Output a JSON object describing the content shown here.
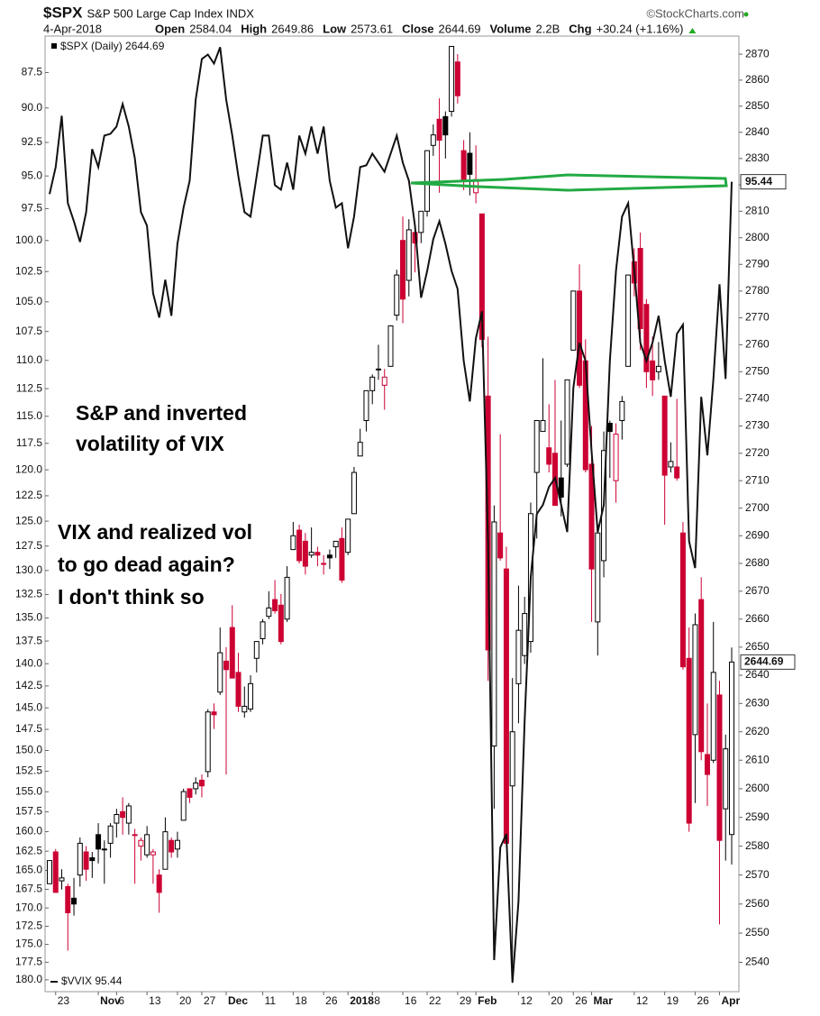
{
  "chart_data": {
    "type": "candlestick",
    "title": "$SPX",
    "subtitle": "S&P 500 Large Cap Index INDX",
    "source": "©StockCharts.com",
    "date": "4-Apr-2018",
    "stats": [
      {
        "label": "Open",
        "value": "2584.04"
      },
      {
        "label": "High",
        "value": "2649.86"
      },
      {
        "label": "Low",
        "value": "2573.61"
      },
      {
        "label": "Close",
        "value": "2644.69"
      },
      {
        "label": "Volume",
        "value": "2.2B"
      },
      {
        "label": "Chg",
        "value": "+30.24 (+1.16%)"
      }
    ],
    "annotations": [
      "S&P and inverted",
      "volatility of VIX",
      "VIX and realized vol",
      "to go dead again?",
      "I don't think so"
    ],
    "categories": [
      null,
      "23",
      null,
      null,
      null,
      null,
      null,
      null,
      "Nov",
      null,
      null,
      "6",
      null,
      null,
      null,
      null,
      "13",
      null,
      null,
      null,
      null,
      "20",
      null,
      null,
      null,
      "27",
      null,
      null,
      null,
      "Dec",
      null,
      null,
      null,
      null,
      null,
      "11",
      null,
      null,
      null,
      null,
      "18",
      null,
      null,
      null,
      null,
      "26",
      null,
      null,
      null,
      "2018",
      null,
      null,
      null,
      "8",
      null,
      null,
      null,
      null,
      "16",
      null,
      null,
      null,
      "22",
      null,
      null,
      null,
      null,
      "29",
      null,
      null,
      "Feb",
      null,
      null,
      null,
      null,
      null,
      null,
      "12",
      null,
      null,
      null,
      null,
      "20",
      null,
      null,
      null,
      "26",
      null,
      null,
      "Mar",
      null,
      null,
      null,
      null,
      null,
      null,
      "12",
      null,
      null,
      null,
      null,
      "19",
      null,
      null,
      null,
      null,
      "26",
      null,
      null,
      null,
      "Apr",
      null,
      null
    ],
    "ylim": [
      181.7,
      85
    ],
    "ylog": true,
    "yticks": [
      87.5,
      {
        "value": 90,
        "label": "90.0"
      },
      92.5,
      {
        "value": 95,
        "label": "95.0"
      },
      97.5,
      {
        "value": 100,
        "label": "100.0"
      },
      102.5,
      {
        "value": 105,
        "label": "105.0"
      },
      107.5,
      {
        "value": 110,
        "label": "110.0"
      },
      112.5,
      {
        "value": 115,
        "label": "115.0"
      },
      117.5,
      {
        "value": 120,
        "label": "120.0"
      },
      122.5,
      {
        "value": 125,
        "label": "125.0"
      },
      127.5,
      {
        "value": 130,
        "label": "130.0"
      },
      132.5,
      {
        "value": 135,
        "label": "135.0"
      },
      137.5,
      {
        "value": 140,
        "label": "140.0"
      },
      142.5,
      {
        "value": 145,
        "label": "145.0"
      },
      147.5,
      {
        "value": 150,
        "label": "150.0"
      },
      152.5,
      {
        "value": 155,
        "label": "155.0"
      },
      157.5,
      {
        "value": 160,
        "label": "160.0"
      },
      162.5,
      {
        "value": 165,
        "label": "165.0"
      },
      167.5,
      {
        "value": 170,
        "label": "170.0"
      },
      172.5,
      {
        "value": 175,
        "label": "175.0"
      },
      177.5,
      {
        "value": 180,
        "label": "180.0"
      }
    ],
    "y2lim": [
      2530,
      2877
    ],
    "y2log": true,
    "y2ticks": [
      2540,
      2550,
      2560,
      2570,
      2580,
      2590,
      2600,
      2610,
      2620,
      2630,
      2640,
      2650,
      2660,
      2670,
      2680,
      2690,
      2700,
      2710,
      2720,
      2730,
      2740,
      2750,
      2760,
      2770,
      2780,
      2790,
      2800,
      2810,
      2820,
      2830,
      2840,
      2850,
      2860,
      2870
    ],
    "grid": false,
    "up_color": "#000000",
    "down_color": "#cc0033",
    "series": [
      {
        "name": "$SPX (Daily) 2644.69",
        "type": "candlestick",
        "axis": "y2",
        "open": [
          2567,
          2578,
          2568,
          2566,
          2562,
          2570,
          2578,
          2576,
          2584,
          2579,
          2581,
          2588,
          2592,
          2588,
          2584,
          2580,
          2577,
          2577,
          2570,
          2572,
          2582,
          2579,
          2589,
          2600,
          2600,
          2603,
          2606,
          2627,
          2634,
          2645,
          2657,
          2641,
          2627,
          2628,
          2646,
          2653,
          2661,
          2667,
          2665,
          2660,
          2685,
          2692,
          2688,
          2683,
          2684,
          2680,
          2683,
          2686,
          2689,
          2684,
          2698,
          2719,
          2732,
          2743,
          2751,
          2745,
          2752,
          2771,
          2799,
          2784,
          2802,
          2802,
          2810,
          2835,
          2845,
          2846,
          2848,
          2867,
          2833,
          2832,
          2817,
          2809,
          2741,
          2615,
          2691,
          2678,
          2601,
          2637,
          2647,
          2652,
          2713,
          2728,
          2722,
          2720,
          2711,
          2716,
          2758,
          2780,
          2754,
          2716,
          2659,
          2681,
          2731,
          2710,
          2732,
          2752,
          2791,
          2796,
          2775,
          2754,
          2750,
          2741,
          2715,
          2715,
          2691,
          2646,
          2619,
          2667,
          2612,
          2610,
          2633,
          2593,
          2584.04
        ],
        "high": [
          2575,
          2579,
          2572,
          2567,
          2569,
          2583,
          2580,
          2578,
          2588,
          2582,
          2588,
          2593,
          2597,
          2595,
          2586,
          2583,
          2587,
          2579,
          2572,
          2590,
          2583,
          2585,
          2600,
          2600,
          2604,
          2605,
          2628,
          2630,
          2657,
          2650,
          2665,
          2648,
          2636,
          2640,
          2652,
          2660,
          2670,
          2674,
          2669,
          2679,
          2695,
          2694,
          2691,
          2693,
          2686,
          2683,
          2685,
          2688,
          2693,
          2696,
          2715,
          2729,
          2743,
          2749,
          2760,
          2751,
          2767,
          2788,
          2808,
          2807,
          2805,
          2810,
          2833,
          2843,
          2853,
          2848,
          2873,
          2870,
          2837,
          2840,
          2835,
          2809,
          2763,
          2701,
          2727,
          2686,
          2639,
          2672,
          2668,
          2702,
          2732,
          2755,
          2738,
          2747,
          2732,
          2747,
          2780,
          2790,
          2762,
          2730,
          2694,
          2728,
          2732,
          2731,
          2741,
          2786,
          2796,
          2802,
          2777,
          2763,
          2761,
          2741,
          2724,
          2740,
          2695,
          2657,
          2662,
          2675,
          2630,
          2659,
          2638,
          2619,
          2649.86
        ],
        "low": [
          2567,
          2564,
          2565,
          2544,
          2556,
          2566,
          2568,
          2569,
          2574,
          2567,
          2576,
          2583,
          2584,
          2584,
          2567,
          2575,
          2576,
          2567,
          2557,
          2572,
          2576,
          2576,
          2589,
          2595,
          2598,
          2597,
          2604,
          2621,
          2633,
          2605,
          2639,
          2627,
          2625,
          2627,
          2641,
          2651,
          2660,
          2662,
          2651,
          2659,
          2685,
          2680,
          2676,
          2682,
          2679,
          2676,
          2678,
          2682,
          2673,
          2683,
          2698,
          2719,
          2728,
          2738,
          2747,
          2736,
          2752,
          2769,
          2768,
          2778,
          2787,
          2798,
          2808,
          2831,
          2817,
          2830,
          2846,
          2851,
          2818,
          2816,
          2813,
          2759,
          2638,
          2593,
          2681,
          2580,
          2533,
          2623,
          2644,
          2648,
          2689,
          2728,
          2713,
          2701,
          2697,
          2715,
          2758,
          2744,
          2713,
          2659,
          2647,
          2675,
          2711,
          2702,
          2725,
          2752,
          2778,
          2758,
          2744,
          2741,
          2747,
          2694,
          2713,
          2710,
          2642,
          2585,
          2595,
          2610,
          2594,
          2609,
          2553,
          2575,
          2573.61
        ],
        "close": [
          2575,
          2564,
          2569,
          2557,
          2560,
          2581,
          2572,
          2575,
          2579,
          2579,
          2587,
          2591,
          2590,
          2594,
          2584,
          2582,
          2584,
          2578,
          2564,
          2585,
          2578,
          2582,
          2599,
          2597,
          2602,
          2601,
          2627,
          2626,
          2648,
          2642,
          2639,
          2629,
          2629,
          2637,
          2652,
          2659,
          2664,
          2663,
          2652,
          2675,
          2690,
          2681,
          2679,
          2684,
          2683,
          2680,
          2682,
          2688,
          2674,
          2696,
          2713,
          2724,
          2743,
          2748,
          2751,
          2748,
          2767,
          2786,
          2777,
          2803,
          2798,
          2810,
          2833,
          2839,
          2837,
          2839,
          2873,
          2854,
          2822,
          2824,
          2822,
          2762,
          2649,
          2695,
          2682,
          2581,
          2620,
          2656,
          2662,
          2698,
          2732,
          2732,
          2716,
          2701,
          2704,
          2747,
          2780,
          2745,
          2714,
          2678,
          2691,
          2721,
          2728,
          2727,
          2739,
          2786,
          2783,
          2766,
          2750,
          2747,
          2752,
          2712,
          2717,
          2711,
          2643,
          2588,
          2658,
          2613,
          2605,
          2641,
          2582,
          2614,
          2644.69
        ]
      },
      {
        "name": "$VVIX 95.44",
        "type": "line",
        "axis": "y",
        "color": "#111111",
        "values": [
          96.38,
          94.33,
          90.56,
          97.08,
          98.48,
          100.12,
          97.77,
          92.99,
          94.33,
          92.0,
          91.87,
          91.34,
          89.72,
          91.34,
          93.66,
          97.77,
          98.83,
          104.29,
          106.32,
          103.17,
          106.17,
          100.26,
          97.42,
          95.36,
          89.4,
          86.56,
          86.26,
          86.88,
          85.76,
          89.4,
          92.0,
          95.02,
          97.77,
          98.12,
          95.02,
          92.0,
          92.0,
          95.7,
          96.04,
          94.0,
          96.04,
          92.0,
          93.33,
          91.34,
          93.33,
          91.34,
          95.36,
          97.42,
          97.08,
          100.62,
          98.12,
          94.33,
          94.2,
          93.33,
          94.0,
          94.68,
          93.33,
          92.0,
          94.0,
          95.36,
          98.83,
          104.66,
          102.44,
          99.9,
          98.48,
          100.26,
          102.44,
          103.92,
          110.04,
          113.65,
          108.09,
          105.79,
          127.0,
          177.2,
          162.02,
          160.29,
          180.4,
          169.13,
          146.55,
          130.68,
          124.29,
          123.4,
          121.65,
          120.78,
          123.4,
          126.09,
          112.43,
          108.47,
          110.04,
          118.22,
          126.09,
          123.4,
          110.04,
          102.44,
          98.12,
          97.08,
          102.44,
          108.47,
          110.04,
          108.47,
          106.17,
          110.04,
          113.24,
          107.7,
          106.93,
          127.0,
          129.75,
          113.24,
          118.63,
          111.63,
          103.54,
          111.63,
          95.44
        ]
      }
    ]
  }
}
